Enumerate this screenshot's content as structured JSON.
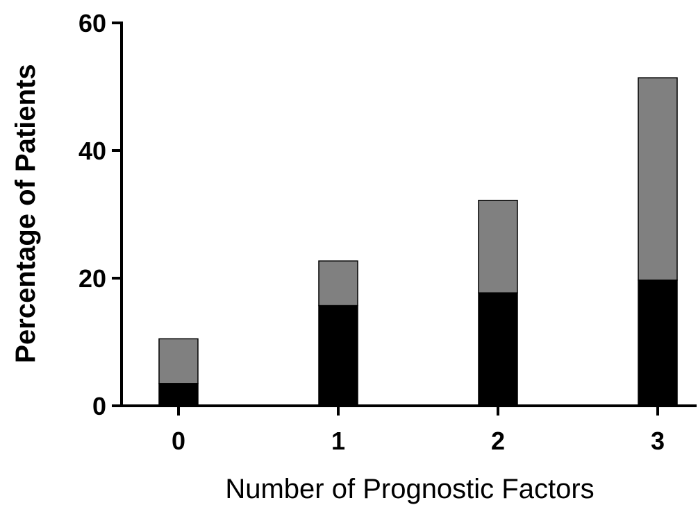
{
  "chart_data": {
    "type": "bar",
    "stacked": true,
    "title": "",
    "xlabel": "Number of Prognostic Factors",
    "ylabel": "Percentage of Patients",
    "categories": [
      "0",
      "1",
      "2",
      "3"
    ],
    "ylim": [
      0,
      60
    ],
    "yticks": [
      "0",
      "20",
      "40",
      "60"
    ],
    "grid": false,
    "legend": "none",
    "series": [
      {
        "values": [
          3.5,
          15.7,
          17.7,
          19.7
        ],
        "color": "#000000"
      },
      {
        "values": [
          7.0,
          7.0,
          14.5,
          31.7
        ],
        "color": "#808080"
      }
    ]
  }
}
